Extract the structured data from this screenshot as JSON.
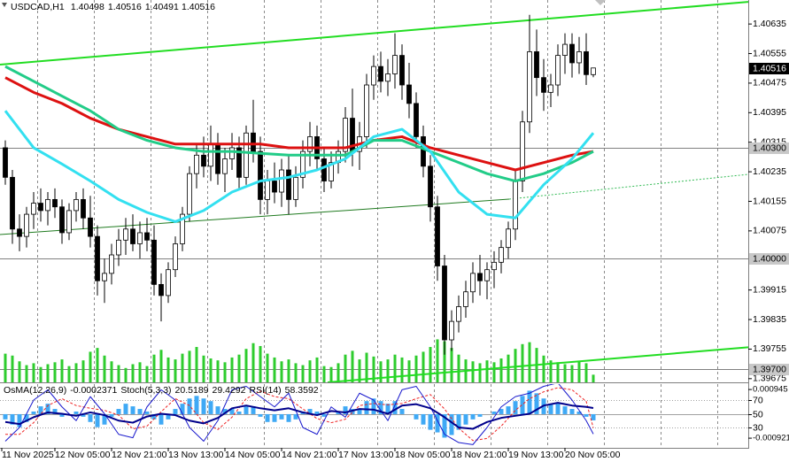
{
  "chart_data": {
    "type": "candlestick",
    "symbol": "USDCAD,H1",
    "xlim": [
      -0.75,
      104.875
    ],
    "ylim": [
      1.39665,
      1.407
    ],
    "yticks": [
      1.40635,
      1.40555,
      1.40475,
      1.40395,
      1.40315,
      1.40235,
      1.40155,
      1.40075,
      1.39915,
      1.39835,
      1.39755,
      1.39675
    ],
    "xticks": [
      {
        "value": -0.5,
        "label": "11 Nov 2025"
      },
      {
        "value": 7,
        "label": "12 Nov 05:00"
      },
      {
        "value": 15,
        "label": "12 Nov 21:00"
      },
      {
        "value": 23,
        "label": "13 Nov 13:00"
      },
      {
        "value": 31,
        "label": "14 Nov 05:00"
      },
      {
        "value": 39,
        "label": "14 Nov 21:00"
      },
      {
        "value": 47,
        "label": "17 Nov 13:00"
      },
      {
        "value": 55,
        "label": "18 Nov 05:00"
      },
      {
        "value": 63,
        "label": "18 Nov 21:00"
      },
      {
        "value": 71,
        "label": "19 Nov 13:00"
      },
      {
        "value": 79,
        "label": "20 Nov 05:00"
      }
    ],
    "xgrid": [
      4.5,
      12.5,
      20.5,
      28.5,
      36.5,
      44.5,
      52.5,
      60.5,
      68.5,
      76.5,
      84.5,
      92.5,
      100.5
    ],
    "grid": true,
    "ohlc": [
      [
        1.403,
        1.4032,
        1.402,
        1.4022
      ],
      [
        1.4022,
        1.4024,
        1.4004,
        1.4008
      ],
      [
        1.4008,
        1.4012,
        1.4002,
        1.4006
      ],
      [
        1.4006,
        1.4014,
        1.4003,
        1.4012
      ],
      [
        1.4012,
        1.4018,
        1.4008,
        1.4015
      ],
      [
        1.4015,
        1.4019,
        1.401,
        1.4013
      ],
      [
        1.4013,
        1.4018,
        1.4009,
        1.4016
      ],
      [
        1.4016,
        1.4019,
        1.4011,
        1.4014
      ],
      [
        1.4014,
        1.4016,
        1.4004,
        1.4007
      ],
      [
        1.4007,
        1.4015,
        1.4005,
        1.4013
      ],
      [
        1.4013,
        1.4018,
        1.401,
        1.4016
      ],
      [
        1.4016,
        1.4019,
        1.4008,
        1.4011
      ],
      [
        1.4011,
        1.4017,
        1.4003,
        1.4006
      ],
      [
        1.4006,
        1.4009,
        1.399,
        1.3994
      ],
      [
        1.3994,
        1.4,
        1.3988,
        1.3996
      ],
      [
        1.3996,
        1.4004,
        1.3993,
        1.4001
      ],
      [
        1.4001,
        1.4008,
        1.3998,
        1.4005
      ],
      [
        1.4005,
        1.4011,
        1.4001,
        1.4008
      ],
      [
        1.4008,
        1.4012,
        1.4002,
        1.4004
      ],
      [
        1.4004,
        1.401,
        1.4,
        1.4007
      ],
      [
        1.4007,
        1.4011,
        1.4002,
        1.4005
      ],
      [
        1.4005,
        1.4009,
        1.399,
        1.3993
      ],
      [
        1.3993,
        1.3996,
        1.3983,
        1.399
      ],
      [
        1.399,
        1.3999,
        1.3988,
        1.3997
      ],
      [
        1.3997,
        1.4006,
        1.3995,
        1.4004
      ],
      [
        1.4004,
        1.4014,
        1.4002,
        1.4012
      ],
      [
        1.4012,
        1.4025,
        1.401,
        1.4023
      ],
      [
        1.4023,
        1.4031,
        1.4019,
        1.4028
      ],
      [
        1.4028,
        1.4033,
        1.4022,
        1.4025
      ],
      [
        1.4025,
        1.4036,
        1.4021,
        1.4031
      ],
      [
        1.4031,
        1.4034,
        1.402,
        1.4023
      ],
      [
        1.4023,
        1.403,
        1.4018,
        1.4027
      ],
      [
        1.4027,
        1.4034,
        1.4024,
        1.403
      ],
      [
        1.403,
        1.4033,
        1.4019,
        1.4022
      ],
      [
        1.4022,
        1.4036,
        1.402,
        1.4034
      ],
      [
        1.4034,
        1.4043,
        1.4026,
        1.4029
      ],
      [
        1.4029,
        1.4033,
        1.4012,
        1.4016
      ],
      [
        1.4016,
        1.4024,
        1.4012,
        1.4021
      ],
      [
        1.4021,
        1.4026,
        1.4015,
        1.4018
      ],
      [
        1.4018,
        1.4027,
        1.4014,
        1.4024
      ],
      [
        1.4024,
        1.4028,
        1.4012,
        1.4016
      ],
      [
        1.4016,
        1.4025,
        1.4014,
        1.4022
      ],
      [
        1.4022,
        1.4032,
        1.4019,
        1.4029
      ],
      [
        1.4029,
        1.4037,
        1.4025,
        1.4033
      ],
      [
        1.4033,
        1.4036,
        1.4024,
        1.4027
      ],
      [
        1.4027,
        1.403,
        1.4018,
        1.4021
      ],
      [
        1.4021,
        1.4029,
        1.4019,
        1.4026
      ],
      [
        1.4026,
        1.4032,
        1.4023,
        1.4029
      ],
      [
        1.4029,
        1.4041,
        1.4026,
        1.4038
      ],
      [
        1.4038,
        1.4046,
        1.4025,
        1.4029
      ],
      [
        1.4029,
        1.4037,
        1.4024,
        1.4033
      ],
      [
        1.4033,
        1.405,
        1.403,
        1.4047
      ],
      [
        1.4047,
        1.4055,
        1.4043,
        1.4052
      ],
      [
        1.4052,
        1.4056,
        1.4045,
        1.4048
      ],
      [
        1.4048,
        1.4054,
        1.4044,
        1.405
      ],
      [
        1.405,
        1.4061,
        1.4046,
        1.4055
      ],
      [
        1.4055,
        1.4058,
        1.4043,
        1.4047
      ],
      [
        1.4047,
        1.4053,
        1.4038,
        1.4042
      ],
      [
        1.4042,
        1.4045,
        1.403,
        1.4033
      ],
      [
        1.4033,
        1.4036,
        1.4022,
        1.4025
      ],
      [
        1.4025,
        1.4028,
        1.401,
        1.4014
      ],
      [
        1.4014,
        1.4017,
        1.3994,
        1.3998
      ],
      [
        1.3998,
        1.4001,
        1.3974,
        1.3978
      ],
      [
        1.3978,
        1.3986,
        1.3975,
        1.3983
      ],
      [
        1.3983,
        1.399,
        1.398,
        1.3987
      ],
      [
        1.3987,
        1.3994,
        1.3984,
        1.3991
      ],
      [
        1.3991,
        1.3999,
        1.3988,
        1.3996
      ],
      [
        1.3996,
        1.4001,
        1.399,
        1.3994
      ],
      [
        1.3994,
        1.3999,
        1.3989,
        1.3997
      ],
      [
        1.3997,
        1.4002,
        1.3992,
        1.3999
      ],
      [
        1.3999,
        1.4005,
        1.3996,
        1.4003
      ],
      [
        1.4003,
        1.401,
        1.4,
        1.4008
      ],
      [
        1.4008,
        1.4024,
        1.4005,
        1.4021
      ],
      [
        1.4021,
        1.404,
        1.4018,
        1.4037
      ],
      [
        1.4037,
        1.4066,
        1.4034,
        1.4056
      ],
      [
        1.4056,
        1.4062,
        1.4044,
        1.4049
      ],
      [
        1.4049,
        1.4054,
        1.404,
        1.4045
      ],
      [
        1.4045,
        1.405,
        1.4041,
        1.4047
      ],
      [
        1.4047,
        1.4058,
        1.4044,
        1.4055
      ],
      [
        1.4055,
        1.4061,
        1.405,
        1.4058
      ],
      [
        1.4058,
        1.4061,
        1.4049,
        1.4053
      ],
      [
        1.4053,
        1.406,
        1.405,
        1.4056
      ],
      [
        1.4056,
        1.4061,
        1.4047,
        1.40498
      ],
      [
        1.40498,
        1.40516,
        1.40491,
        1.40516
      ]
    ],
    "last_price": 1.40516,
    "volume_color": "#2ecc2e",
    "vlim": [
      0,
      10000
    ],
    "volumes": [
      3000,
      2800,
      2200,
      1800,
      2000,
      1600,
      1900,
      2100,
      2400,
      1700,
      2000,
      2300,
      3200,
      3600,
      2800,
      2200,
      1800,
      1500,
      1900,
      2100,
      1700,
      2900,
      3400,
      2600,
      2400,
      3000,
      3300,
      3700,
      2800,
      2500,
      2300,
      2100,
      2600,
      2900,
      3500,
      4100,
      3800,
      3000,
      2600,
      2200,
      2400,
      2000,
      1800,
      2300,
      2600,
      1700,
      1600,
      2000,
      2900,
      3300,
      2400,
      3100,
      2700,
      2200,
      2400,
      2900,
      2600,
      2300,
      2800,
      3200,
      3700,
      4500,
      4300,
      3600,
      2900,
      2400,
      2200,
      2000,
      2300,
      2100,
      2500,
      2900,
      3500,
      4000,
      4200,
      3600,
      2800,
      2300,
      2100,
      1900,
      1800,
      2200,
      2000,
      800
    ],
    "hlines": [
      {
        "value": 1.403,
        "label": "1.40300"
      },
      {
        "value": 1.4,
        "label": "1.40000"
      },
      {
        "value": 1.397,
        "label": "1.39700"
      }
    ],
    "trendlines": [
      {
        "color": "#22dd22",
        "width": 2,
        "dotted": false,
        "x": [
          -0.75,
          104.875
        ],
        "values": [
          1.40525,
          1.40695
        ]
      },
      {
        "color": "#1f7a1f",
        "width": 1,
        "dotted": false,
        "x": [
          -0.75,
          71.125
        ],
        "values": [
          1.40065,
          1.40161
        ]
      },
      {
        "color": "#33bb55",
        "width": 1,
        "dotted": true,
        "x": [
          71.125,
          104.875
        ],
        "values": [
          1.40161,
          1.40228
        ]
      },
      {
        "color": "#22dd22",
        "width": 2,
        "dotted": false,
        "x": [
          45.5,
          104.875
        ],
        "values": [
          1.39665,
          1.3976
        ]
      }
    ],
    "ma": [
      {
        "color": "#dd1111",
        "width": 3,
        "x": [
          0,
          4,
          8,
          12,
          16,
          20,
          24,
          28,
          32,
          36,
          40,
          44,
          48,
          52,
          56,
          60,
          64,
          68,
          72,
          76,
          80,
          83
        ],
        "values": [
          1.4049,
          1.4045,
          1.4042,
          1.4038,
          1.4035,
          1.4033,
          1.4031,
          1.4031,
          1.4031,
          1.4031,
          1.403,
          1.403,
          1.403,
          1.4032,
          1.4033,
          1.403,
          1.4028,
          1.4026,
          1.4024,
          1.4026,
          1.4028,
          1.4029
        ]
      },
      {
        "color": "#22cc88",
        "width": 3,
        "x": [
          0,
          4,
          8,
          12,
          16,
          20,
          24,
          28,
          32,
          36,
          40,
          44,
          48,
          52,
          56,
          60,
          64,
          68,
          72,
          76,
          80,
          83
        ],
        "values": [
          1.4052,
          1.4048,
          1.4044,
          1.404,
          1.4035,
          1.4032,
          1.403,
          1.4029,
          1.4029,
          1.40285,
          1.4028,
          1.4028,
          1.4028,
          1.4032,
          1.4032,
          1.4029,
          1.4026,
          1.4023,
          1.4021,
          1.4023,
          1.4026,
          1.4029
        ]
      },
      {
        "color": "#33e0f0",
        "width": 3,
        "x": [
          0,
          4,
          8,
          12,
          16,
          20,
          24,
          28,
          32,
          36,
          40,
          44,
          48,
          52,
          56,
          60,
          64,
          68,
          72,
          76,
          80,
          83
        ],
        "values": [
          1.404,
          1.403,
          1.40256,
          1.4021,
          1.4016,
          1.40125,
          1.401,
          1.4013,
          1.4018,
          1.4021,
          1.4022,
          1.4024,
          1.4027,
          1.4033,
          1.4035,
          1.4029,
          1.4018,
          1.4012,
          1.4011,
          1.402,
          1.4027,
          1.4034
        ]
      }
    ],
    "oscillator": {
      "ylim": [
        0,
        100
      ],
      "y2lim": [
        -0.0013,
        0.00133
      ],
      "levels": [
        70,
        50,
        30
      ],
      "y2ticks": [
        0.000945,
        -0.000921
      ],
      "osma": {
        "name": "OsMA(12,26,9)",
        "color": "#3fa9f5",
        "values": [
          -0.0002,
          -0.0004,
          -0.0005,
          -0.0003,
          0.0001,
          0.0003,
          0.0004,
          0.0002,
          -0.0001,
          0.0,
          0.0001,
          -0.0001,
          -0.0003,
          -0.0005,
          -0.0004,
          -0.0001,
          0.0002,
          0.0004,
          0.0003,
          0.0002,
          0.0001,
          -0.0002,
          -0.0004,
          -0.0002,
          0.0002,
          0.0004,
          0.0006,
          0.0007,
          0.0006,
          0.0005,
          0.0003,
          0.0002,
          0.0002,
          0.0001,
          0.0003,
          0.0003,
          -0.0001,
          -0.0003,
          -0.0003,
          -0.0002,
          -0.0003,
          -0.0002,
          0.0001,
          0.0002,
          0.0001,
          -0.0001,
          0.0,
          0.0001,
          0.0003,
          0.0002,
          0.0002,
          0.0005,
          0.0006,
          0.0005,
          0.0004,
          0.0005,
          0.0002,
          0.0,
          -0.0002,
          -0.0004,
          -0.0006,
          -0.0007,
          -0.0009,
          -0.0008,
          -0.0006,
          -0.0004,
          -0.0002,
          -0.0001,
          0.0,
          0.0001,
          0.0002,
          0.0003,
          0.0005,
          0.0007,
          0.0009,
          0.0008,
          0.0006,
          0.0004,
          0.0004,
          0.0003,
          0.0002,
          0.0001,
          -0.0001,
          -0.0002371
        ]
      },
      "stoch": {
        "name": "Stoch(5,3,3)",
        "color": "#1a1acd",
        "signal_color": "#ee2222",
        "x": [
          0,
          2,
          4,
          6,
          8,
          10,
          12,
          14,
          16,
          18,
          20,
          22,
          24,
          26,
          28,
          30,
          32,
          34,
          36,
          38,
          40,
          42,
          44,
          46,
          48,
          50,
          52,
          54,
          56,
          58,
          60,
          62,
          64,
          66,
          68,
          70,
          72,
          74,
          76,
          78,
          80,
          82,
          83
        ],
        "main": [
          10,
          30,
          70,
          85,
          60,
          40,
          75,
          50,
          20,
          15,
          60,
          85,
          70,
          30,
          10,
          40,
          85,
          90,
          75,
          60,
          80,
          30,
          20,
          60,
          45,
          80,
          70,
          40,
          85,
          90,
          60,
          20,
          8,
          5,
          30,
          60,
          75,
          80,
          90,
          95,
          70,
          40,
          20.5189
        ],
        "signal": [
          20,
          20,
          37,
          62,
          72,
          62,
          58,
          55,
          48,
          28,
          32,
          53,
          72,
          62,
          37,
          27,
          45,
          72,
          83,
          75,
          72,
          57,
          43,
          37,
          42,
          62,
          65,
          63,
          65,
          72,
          78,
          57,
          29,
          11,
          14,
          32,
          55,
          72,
          82,
          88,
          85,
          68,
          29.4292
        ]
      },
      "rsi": {
        "name": "RSI(14)",
        "color": "#00008b",
        "x": [
          0,
          2,
          4,
          6,
          8,
          10,
          12,
          14,
          16,
          18,
          20,
          22,
          24,
          26,
          28,
          30,
          32,
          34,
          36,
          38,
          40,
          42,
          44,
          46,
          48,
          50,
          52,
          54,
          56,
          58,
          60,
          62,
          64,
          66,
          68,
          70,
          72,
          74,
          76,
          78,
          80,
          82,
          83
        ],
        "values": [
          38,
          35,
          45,
          52,
          50,
          47,
          52,
          48,
          40,
          37,
          46,
          50,
          48,
          40,
          36,
          44,
          58,
          62,
          58,
          55,
          58,
          52,
          48,
          54,
          52,
          57,
          56,
          50,
          62,
          64,
          58,
          45,
          30,
          28,
          38,
          44,
          47,
          50,
          62,
          66,
          62,
          60,
          58.3592
        ]
      }
    }
  }
}
